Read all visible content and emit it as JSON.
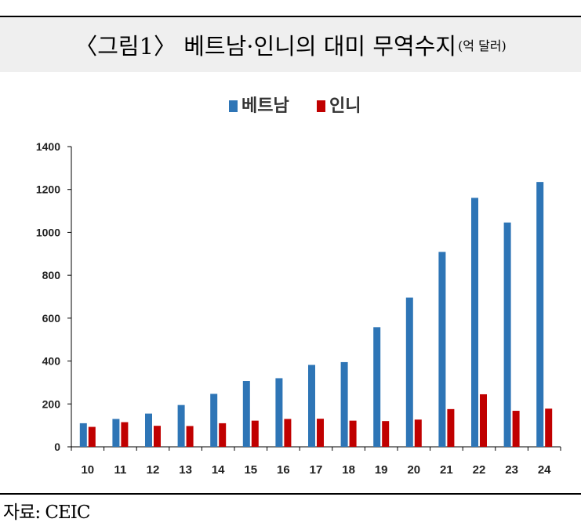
{
  "header": {
    "title": "〈그림1〉 베트남·인니의 대미 무역수지",
    "unit": "(억 달러)"
  },
  "footer": {
    "source": "자료: CEIC"
  },
  "colors": {
    "vietnam": "#2e75b6",
    "indonesia": "#c00000"
  },
  "chart_data": {
    "type": "bar",
    "title": "",
    "xlabel": "",
    "ylabel": "",
    "categories": [
      "10",
      "11",
      "12",
      "13",
      "14",
      "15",
      "16",
      "17",
      "18",
      "19",
      "20",
      "21",
      "22",
      "23",
      "24"
    ],
    "series": [
      {
        "name": "베트남",
        "values": [
          110,
          130,
          155,
          195,
          247,
          307,
          320,
          382,
          395,
          558,
          696,
          909,
          1161,
          1046,
          1235
        ]
      },
      {
        "name": "인니",
        "values": [
          93,
          115,
          98,
          97,
          110,
          122,
          130,
          131,
          122,
          120,
          127,
          176,
          245,
          168,
          178
        ]
      }
    ],
    "ylim": [
      0,
      1400
    ],
    "yticks": [
      0,
      200,
      400,
      600,
      800,
      1000,
      1200,
      1400
    ],
    "grid": false,
    "legend_position": "top-center"
  }
}
